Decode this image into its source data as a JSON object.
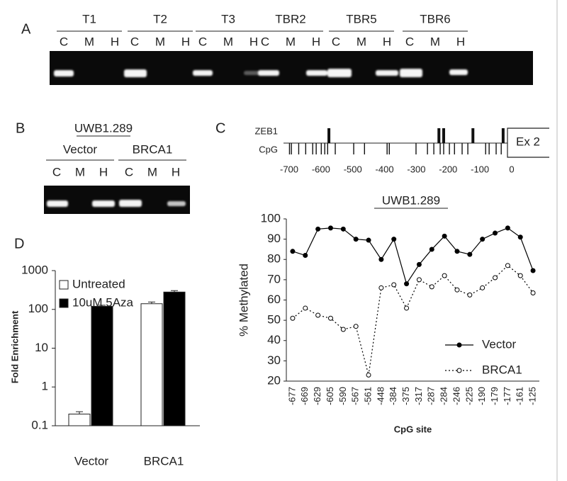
{
  "panel_labels": [
    "A",
    "B",
    "C",
    "D"
  ],
  "gel_a": {
    "groups": [
      {
        "label": "T1",
        "lanes": [
          "C",
          "M",
          "H"
        ]
      },
      {
        "label": "T2",
        "lanes": [
          "C",
          "M",
          "H"
        ]
      },
      {
        "label": "T3",
        "lanes": [
          "C",
          "M",
          "H"
        ]
      },
      {
        "label": "TBR2",
        "lanes": [
          "C",
          "M",
          "H"
        ]
      },
      {
        "label": "TBR5",
        "lanes": [
          "C",
          "M",
          "H"
        ]
      },
      {
        "label": "TBR6",
        "lanes": [
          "C",
          "M",
          "H"
        ]
      }
    ]
  },
  "gel_b": {
    "title": "UWB1.289",
    "groups": [
      {
        "label": "Vector",
        "lanes": [
          "C",
          "M",
          "H"
        ]
      },
      {
        "label": "BRCA1",
        "lanes": [
          "C",
          "M",
          "H"
        ]
      }
    ]
  },
  "promoter_map": {
    "rows": [
      "ZEB1",
      "CpG"
    ],
    "exon": "Ex 2",
    "xlim": [
      -700,
      0
    ],
    "xticks": [
      -700,
      -600,
      -500,
      -400,
      -300,
      -200,
      -100,
      0
    ],
    "zeb1_sites": [
      -575,
      -229,
      -214,
      -122,
      -27
    ],
    "cpg_sites": [
      -699,
      -693,
      -670,
      -648,
      -626,
      -615,
      -599,
      -588,
      -579,
      -555,
      -497,
      -463,
      -392,
      -385,
      -301,
      -265,
      -245,
      -225,
      -214,
      -196,
      -180,
      -156,
      -138,
      -82,
      -71,
      -49,
      -33
    ]
  },
  "chart_data": [
    {
      "type": "line",
      "title": "UWB1.289",
      "x_label": "CpG site",
      "y_label": "% Methylated",
      "categories": [
        "-677",
        "-669",
        "-629",
        "-605",
        "-590",
        "-567",
        "-561",
        "-448",
        "-384",
        "-375",
        "-317",
        "-287",
        "-284",
        "-246",
        "-225",
        "-190",
        "-179",
        "-177",
        "-161",
        "-125"
      ],
      "series": [
        {
          "name": "Vector",
          "color": "#000000",
          "line_style": "solid",
          "marker_fill": "#000000",
          "values": [
            84,
            82,
            95,
            95.5,
            95,
            90,
            89.5,
            80,
            90,
            68,
            77.5,
            85,
            91.5,
            84,
            82.5,
            90,
            93,
            95.5,
            91,
            74.5
          ]
        },
        {
          "name": "BRCA1",
          "color": "#000000",
          "line_style": "dotted",
          "marker_fill": "#ffffff",
          "values": [
            51,
            56,
            52.5,
            51,
            45.5,
            47,
            23,
            66,
            67.5,
            56,
            70,
            66.5,
            72,
            65,
            62.5,
            66,
            71,
            77,
            72,
            63.5
          ]
        }
      ],
      "ylim": [
        20,
        100
      ],
      "yticks": [
        20,
        30,
        40,
        50,
        60,
        70,
        80,
        90,
        100
      ],
      "grid": false,
      "legend": "lower right"
    },
    {
      "type": "bar",
      "y_label": "Fold Enrichment",
      "log_scale": true,
      "categories": [
        "Vector",
        "BRCA1"
      ],
      "series": [
        {
          "name": "Untreated",
          "color": "#ffffff",
          "values": [
            0.2,
            140
          ],
          "error": [
            0.03,
            15
          ]
        },
        {
          "name": "10uM 5Aza",
          "color": "#000000",
          "values": [
            120,
            280
          ],
          "error": [
            8,
            25
          ]
        }
      ],
      "ylim": [
        0.1,
        1000
      ],
      "yticks": [
        0.1,
        1,
        10,
        100,
        1000
      ],
      "grid": false,
      "legend": "upper left"
    }
  ]
}
